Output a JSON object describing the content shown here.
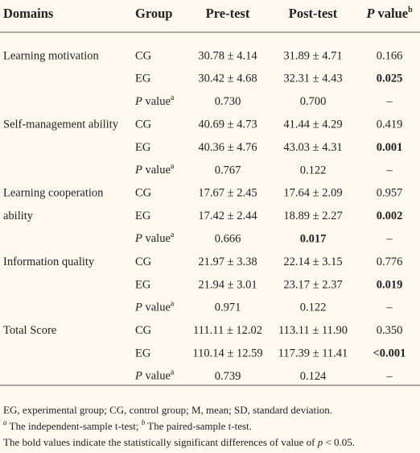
{
  "table": {
    "header": [
      "Domains",
      "Group",
      "Pre-test",
      "Post-test",
      [
        {
          "text": "P",
          "italic": true
        },
        {
          "text": " value"
        },
        {
          "text": "b",
          "sup": true
        }
      ]
    ],
    "rows": [
      [
        "Learning motivation",
        "CG",
        "30.78 ± 4.14",
        "31.89 ± 4.71",
        "0.166"
      ],
      [
        "",
        "EG",
        "30.42 ± 4.68",
        "32.31 ± 4.43",
        {
          "text": "0.025",
          "bold": true
        }
      ],
      [
        "",
        [
          {
            "text": "P",
            "italic": true
          },
          {
            "text": " value"
          },
          {
            "text": "a",
            "sup": true
          }
        ],
        "0.730",
        "0.700",
        "–"
      ],
      [
        "Self-management ability",
        "CG",
        "40.69 ± 4.73",
        "41.44 ± 4.29",
        "0.419"
      ],
      [
        "",
        "EG",
        "40.36 ± 4.76",
        "43.03 ± 4.31",
        {
          "text": "0.001",
          "bold": true
        }
      ],
      [
        "",
        [
          {
            "text": "P",
            "italic": true
          },
          {
            "text": " value"
          },
          {
            "text": "a",
            "sup": true
          }
        ],
        "0.767",
        "0.122",
        "–"
      ],
      [
        "Learning cooperation",
        "CG",
        "17.67 ± 2.45",
        "17.64 ± 2.09",
        "0.957"
      ],
      [
        "ability",
        "EG",
        "17.42 ± 2.44",
        "18.89 ± 2.27",
        {
          "text": "0.002",
          "bold": true
        }
      ],
      [
        "",
        [
          {
            "text": "P",
            "italic": true
          },
          {
            "text": " value"
          },
          {
            "text": "a",
            "sup": true
          }
        ],
        "0.666",
        {
          "text": "0.017",
          "bold": true
        },
        "–"
      ],
      [
        "Information quality",
        "CG",
        "21.97 ± 3.38",
        "22.14 ± 3.15",
        "0.776"
      ],
      [
        "",
        "EG",
        "21.94 ± 3.01",
        "23.17 ± 2.37",
        {
          "text": "0.019",
          "bold": true
        }
      ],
      [
        "",
        [
          {
            "text": "P",
            "italic": true
          },
          {
            "text": " value"
          },
          {
            "text": "a",
            "sup": true
          }
        ],
        "0.971",
        "0.122",
        "–"
      ],
      [
        "Total Score",
        "CG",
        "111.11 ± 12.02",
        "113.11 ± 11.90",
        "0.350"
      ],
      [
        "",
        "EG",
        "110.14 ± 12.59",
        "117.39 ± 11.41",
        {
          "text": "<0.001",
          "bold": true
        }
      ],
      [
        "",
        [
          {
            "text": "P",
            "italic": true
          },
          {
            "text": " value"
          },
          {
            "text": "a",
            "sup": true
          }
        ],
        "0.739",
        "0.124",
        "–"
      ]
    ],
    "footnotes": [
      [
        {
          "text": "EG, experimental group; CG, control group; M, mean; SD, standard deviation."
        }
      ],
      [
        {
          "text": "a",
          "sup": true,
          "italic": true
        },
        {
          "text": " The independent-sample t-test; "
        },
        {
          "text": "b",
          "sup": true,
          "italic": true
        },
        {
          "text": " The paired-sample t-test."
        }
      ],
      [
        {
          "text": "The bold values indicate the statistically significant differences of value of "
        },
        {
          "text": "p",
          "italic": true
        },
        {
          "text": " < 0.05."
        }
      ]
    ]
  }
}
